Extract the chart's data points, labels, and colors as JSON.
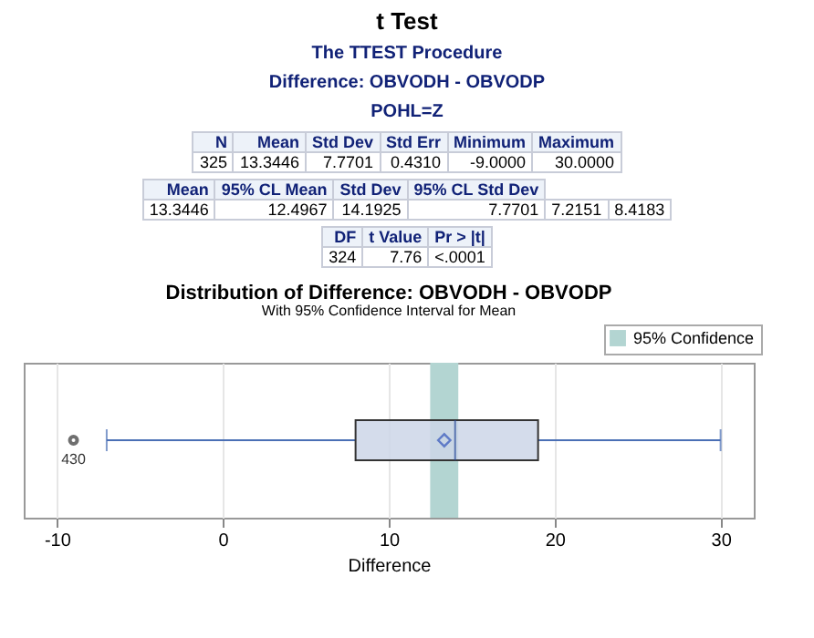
{
  "chart_data": {
    "type": "box",
    "orientation": "horizontal",
    "title": "Distribution of Difference: OBVODH - OBVODP",
    "subtitle": "With 95% Confidence Interval for Mean",
    "xlabel": "Difference",
    "categories": [
      null
    ],
    "boxes": [
      {
        "low": -7,
        "q1": 8,
        "median": 14,
        "q3": 19,
        "high": 30,
        "mean": 13.3446,
        "outliers": [
          -9
        ]
      }
    ],
    "color": "#ccd6e8",
    "xlim": [
      -12,
      32
    ],
    "xticks": [
      -10,
      0,
      10,
      20,
      30
    ],
    "grid": "x",
    "legend": "top right",
    "marker": "diamond",
    "bands": [
      {
        "axis": "x",
        "from": 12.4967,
        "to": 14.1925,
        "label": "95% Confidence",
        "color": "#b3d5d2"
      }
    ],
    "annotations": [
      "t Test",
      "The TTEST Procedure",
      "Difference:  OBVODH - OBVODP",
      "POHL=Z",
      "N\tMean\tStd Dev\tStd Err\tMinimum\tMaximum\n325\t13.3446\t7.7701\t0.4310\t-9.0000\t30.0000",
      "Mean\t95% CL Mean\tStd Dev\t95% CL Std Dev\n13.3446\t12.4967\t14.1925\t7.7701\t7.2151\t8.4183",
      "DF\tt Value\tPr > |t|\n324\t7.76\t<.0001",
      "430"
    ]
  }
}
